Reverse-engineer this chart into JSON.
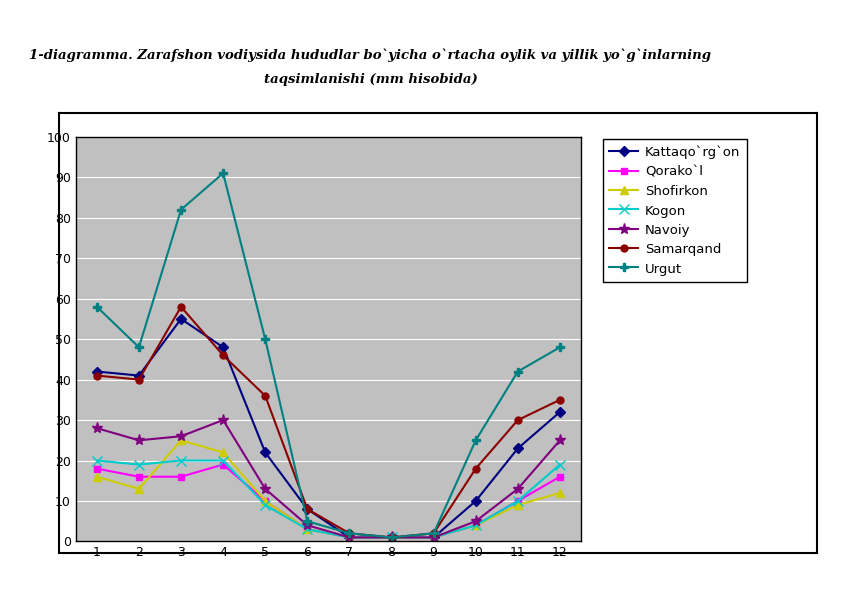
{
  "months": [
    1,
    2,
    3,
    4,
    5,
    6,
    7,
    8,
    9,
    10,
    11,
    12
  ],
  "series": [
    {
      "name": "Kattaqo`rg`on",
      "values": [
        42,
        41,
        55,
        48,
        22,
        8,
        1,
        1,
        1,
        10,
        23,
        32
      ],
      "color": "#000080",
      "marker": "D",
      "markersize": 5
    },
    {
      "name": "Qorako`l",
      "values": [
        18,
        16,
        16,
        19,
        10,
        3,
        1,
        1,
        1,
        4,
        10,
        16
      ],
      "color": "#FF00FF",
      "marker": "s",
      "markersize": 5
    },
    {
      "name": "Shofirkon",
      "values": [
        16,
        13,
        25,
        22,
        10,
        3,
        1,
        1,
        1,
        4,
        9,
        12
      ],
      "color": "#CCCC00",
      "marker": "^",
      "markersize": 6
    },
    {
      "name": "Kogon",
      "values": [
        20,
        19,
        20,
        20,
        9,
        3,
        1,
        1,
        1,
        4,
        10,
        19
      ],
      "color": "#00CCCC",
      "marker": "x",
      "markersize": 7
    },
    {
      "name": "Navoiy",
      "values": [
        28,
        25,
        26,
        30,
        13,
        4,
        1,
        1,
        1,
        5,
        13,
        25
      ],
      "color": "#800080",
      "marker": "*",
      "markersize": 8
    },
    {
      "name": "Samarqand",
      "values": [
        41,
        40,
        58,
        46,
        36,
        8,
        2,
        1,
        2,
        18,
        30,
        35
      ],
      "color": "#8B0000",
      "marker": "o",
      "markersize": 5
    },
    {
      "name": "Urgut",
      "values": [
        58,
        48,
        82,
        91,
        50,
        5,
        2,
        1,
        2,
        25,
        42,
        48
      ],
      "color": "#008080",
      "marker": "P",
      "markersize": 6
    }
  ],
  "xlim": [
    0.5,
    12.5
  ],
  "ylim": [
    0,
    100
  ],
  "yticks": [
    0,
    10,
    20,
    30,
    40,
    50,
    60,
    70,
    80,
    90,
    100
  ],
  "xticks": [
    1,
    2,
    3,
    4,
    5,
    6,
    7,
    8,
    9,
    10,
    11,
    12
  ],
  "title_line1": "1-diagramma. Zarafshon vodiysida hududlar bo`yicha o`rtacha oylik va yillik yo`g`inlarning",
  "title_line2": "taqsimlanishi (mm hisobida)",
  "plot_bg_color": "#C0C0C0",
  "fig_bg_color": "#FFFFFF",
  "grid_color": "#FFFFFF",
  "linewidth": 1.5,
  "title_fontsize": 9.5,
  "tick_fontsize": 9,
  "legend_fontsize": 9.5
}
